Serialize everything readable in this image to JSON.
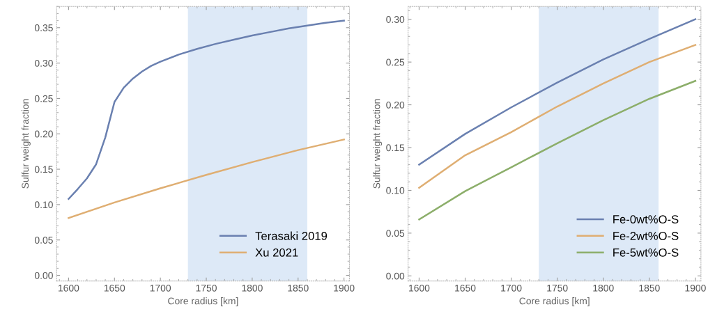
{
  "chart_data": [
    {
      "type": "line",
      "xlabel": "Core radius [km]",
      "ylabel": "Sulfur weight fraction",
      "xlim": [
        1587,
        1906
      ],
      "ylim": [
        -0.008,
        0.38
      ],
      "xticks": [
        1600,
        1650,
        1700,
        1750,
        1800,
        1850,
        1900
      ],
      "yticks": [
        {
          "value": 0,
          "label": "0.00"
        },
        0.05,
        {
          "value": 0.1,
          "label": "0.10"
        },
        0.15,
        {
          "value": 0.2,
          "label": "0.20"
        },
        0.25,
        {
          "value": 0.3,
          "label": "0.30"
        },
        0.35
      ],
      "grid": false,
      "legend": "bottom right",
      "bands": [
        {
          "axis": "x",
          "from": 1730,
          "to": 1860,
          "color": "#dde9f7"
        }
      ],
      "series": [
        {
          "name": "Terasaki 2019",
          "color": "#6a80b0",
          "x": [
            1600,
            1610,
            1620,
            1630,
            1640,
            1645,
            1650,
            1660,
            1670,
            1680,
            1690,
            1700,
            1720,
            1740,
            1760,
            1780,
            1800,
            1820,
            1840,
            1860,
            1880,
            1900
          ],
          "values": [
            0.108,
            0.122,
            0.137,
            0.157,
            0.195,
            0.22,
            0.245,
            0.265,
            0.278,
            0.288,
            0.296,
            0.302,
            0.312,
            0.32,
            0.327,
            0.333,
            0.339,
            0.344,
            0.349,
            0.353,
            0.357,
            0.36
          ]
        },
        {
          "name": "Xu 2021",
          "color": "#dfae72",
          "x": [
            1600,
            1650,
            1700,
            1750,
            1800,
            1850,
            1900
          ],
          "values": [
            0.081,
            0.103,
            0.123,
            0.142,
            0.16,
            0.177,
            0.192
          ]
        }
      ]
    },
    {
      "type": "line",
      "xlabel": "Core radius [km]",
      "ylabel": "Sulfur weight fraction",
      "xlim": [
        1588,
        1906
      ],
      "ylim": [
        -0.006,
        0.315
      ],
      "xticks": [
        1600,
        1650,
        1700,
        1750,
        1800,
        1850,
        1900
      ],
      "yticks": [
        {
          "value": 0,
          "label": "0.00"
        },
        0.05,
        {
          "value": 0.1,
          "label": "0.10"
        },
        0.15,
        {
          "value": 0.2,
          "label": "0.20"
        },
        0.25,
        {
          "value": 0.3,
          "label": "0.30"
        }
      ],
      "grid": false,
      "legend": "bottom right",
      "bands": [
        {
          "axis": "x",
          "from": 1730,
          "to": 1860,
          "color": "#dde9f7"
        }
      ],
      "series": [
        {
          "name": "Fe-0wt%O-S",
          "color": "#6a80b0",
          "x": [
            1600,
            1650,
            1700,
            1750,
            1800,
            1850,
            1900
          ],
          "values": [
            0.13,
            0.166,
            0.197,
            0.226,
            0.253,
            0.277,
            0.3
          ]
        },
        {
          "name": "Fe-2wt%O-S",
          "color": "#dfae72",
          "x": [
            1600,
            1650,
            1700,
            1750,
            1800,
            1850,
            1900
          ],
          "values": [
            0.103,
            0.141,
            0.168,
            0.198,
            0.225,
            0.25,
            0.27
          ]
        },
        {
          "name": "Fe-5wt%O-S",
          "color": "#8cae6a",
          "x": [
            1600,
            1650,
            1700,
            1750,
            1800,
            1850,
            1900
          ],
          "values": [
            0.066,
            0.099,
            0.127,
            0.155,
            0.182,
            0.207,
            0.228
          ]
        }
      ]
    }
  ]
}
